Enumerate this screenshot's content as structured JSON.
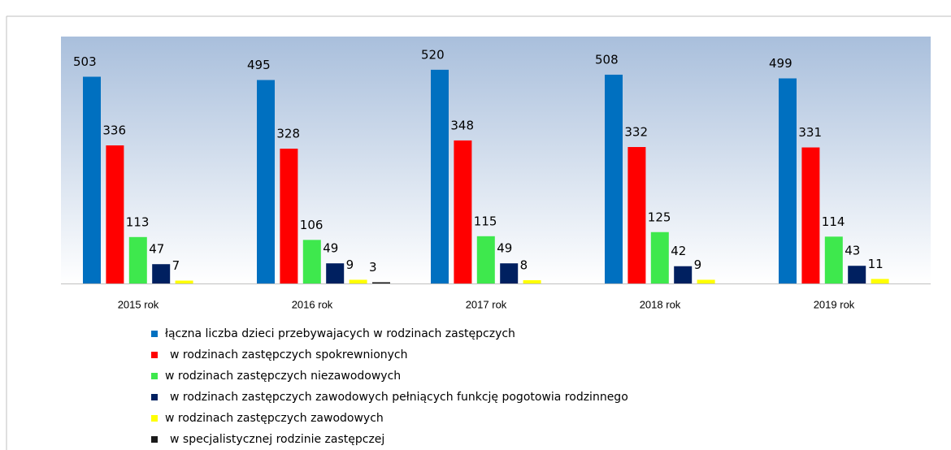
{
  "chart_data": {
    "type": "bar",
    "categories": [
      "2015 rok",
      "2016 rok",
      "2017 rok",
      "2018 rok",
      "2019 rok"
    ],
    "series": [
      {
        "name": "łączna liczba dzieci przebywajacych w rodzinach zastępczych",
        "color": "#0070c0",
        "values": [
          503,
          495,
          520,
          508,
          499
        ]
      },
      {
        "name": "w rodzinach zastępczych spokrewnionych",
        "color": "#ff0000",
        "values": [
          336,
          328,
          348,
          332,
          331
        ]
      },
      {
        "name": "w rodzinach zastępczych niezawodowych",
        "color": "#3ee84d",
        "values": [
          113,
          106,
          115,
          125,
          114
        ]
      },
      {
        "name": "w rodzinach zastępczych zawodowych pełniących funkcję pogotowia rodzinnego",
        "color": "#002060",
        "values": [
          47,
          49,
          49,
          42,
          43
        ]
      },
      {
        "name": "w rodzinach zastępczych zawodowych",
        "color": "#ffff00",
        "values": [
          7,
          9,
          8,
          9,
          11
        ]
      },
      {
        "name": "w specjalistycznej rodzinie zastępczej",
        "color": "#1a1a1a",
        "values": [
          null,
          3,
          null,
          null,
          null
        ]
      }
    ]
  }
}
